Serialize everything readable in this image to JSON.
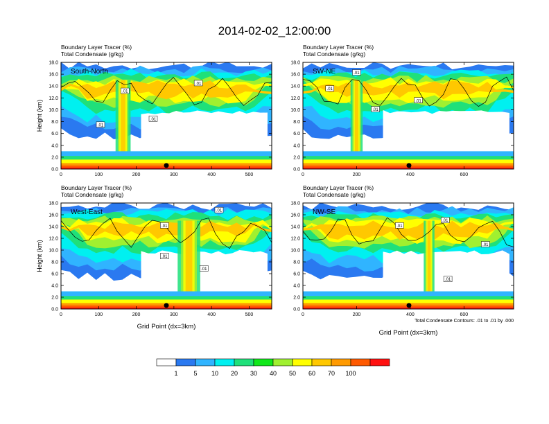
{
  "title": "2014-02-02_12:00:00",
  "chart_data": [
    {
      "type": "heatmap",
      "subtitle1": "Boundary Layer Tracer    (%)",
      "subtitle2": "Total Condensate    (g/kg)",
      "panel_label": "South-North",
      "ylabel": "Height (km)",
      "xlabel": "",
      "ylim": [
        0,
        18
      ],
      "yticks": [
        "0.0",
        "2.0",
        "4.0",
        "6.0",
        "8.0",
        "10.0",
        "12.0",
        "14.0",
        "16.0",
        "18.0"
      ],
      "xlim": [
        0,
        560
      ],
      "xticks": [
        0,
        100,
        200,
        300,
        400,
        500
      ],
      "marker_x": 280,
      "contour_labels": [
        {
          "x": 170,
          "y": 13.2,
          "text": ".01"
        },
        {
          "x": 365,
          "y": 14.5,
          "text": ".01"
        },
        {
          "x": 245,
          "y": 8.5,
          "text": ".01"
        },
        {
          "x": 105,
          "y": 7.5,
          "text": ".01"
        }
      ]
    },
    {
      "type": "heatmap",
      "subtitle1": "Boundary Layer Tracer    (%)",
      "subtitle2": "Total Condensate    (g/kg)",
      "panel_label": "SW-NE",
      "ylabel": "",
      "xlabel": "",
      "ylim": [
        0,
        18
      ],
      "yticks": [
        "0.0",
        "2.0",
        "4.0",
        "6.0",
        "8.0",
        "10.0",
        "12.0",
        "14.0",
        "16.0",
        "18.0"
      ],
      "xlim": [
        0,
        785
      ],
      "xticks": [
        0,
        200,
        400,
        600
      ],
      "marker_x": 395,
      "contour_labels": [
        {
          "x": 200,
          "y": 16.3,
          "text": ".01"
        },
        {
          "x": 100,
          "y": 13.6,
          "text": ".01"
        },
        {
          "x": 270,
          "y": 10.1,
          "text": ".01"
        },
        {
          "x": 430,
          "y": 11.6,
          "text": ".01"
        }
      ]
    },
    {
      "type": "heatmap",
      "subtitle1": "Boundary Layer Tracer    (%)",
      "subtitle2": "Total Condensate    (g/kg)",
      "panel_label": "West-East",
      "ylabel": "Height (km)",
      "xlabel": "Grid Point (dx=3km)",
      "ylim": [
        0,
        18
      ],
      "yticks": [
        "0.0",
        "2.0",
        "4.0",
        "6.0",
        "8.0",
        "10.0",
        "12.0",
        "14.0",
        "16.0",
        "18.0"
      ],
      "xlim": [
        0,
        560
      ],
      "xticks": [
        0,
        100,
        200,
        300,
        400,
        500
      ],
      "marker_x": 280,
      "contour_labels": [
        {
          "x": 275,
          "y": 14.2,
          "text": ".01"
        },
        {
          "x": 420,
          "y": 16.8,
          "text": ".01"
        },
        {
          "x": 275,
          "y": 9.0,
          "text": ".01"
        },
        {
          "x": 380,
          "y": 6.9,
          "text": ".01"
        }
      ]
    },
    {
      "type": "heatmap",
      "subtitle1": "Boundary Layer Tracer    (%)",
      "subtitle2": "Total Condensate    (g/kg)",
      "panel_label": "NW-SE",
      "ylabel": "",
      "xlabel": "Grid Point (dx=3km)",
      "footnote": "Total Condensate Contours: .01 to .01 by .000",
      "ylim": [
        0,
        18
      ],
      "yticks": [
        "0.0",
        "2.0",
        "4.0",
        "6.0",
        "8.0",
        "10.0",
        "12.0",
        "14.0",
        "16.0",
        "18.0"
      ],
      "xlim": [
        0,
        785
      ],
      "xticks": [
        0,
        200,
        400,
        600
      ],
      "marker_x": 395,
      "contour_labels": [
        {
          "x": 360,
          "y": 14.2,
          "text": ".01"
        },
        {
          "x": 530,
          "y": 15.1,
          "text": ".01"
        },
        {
          "x": 540,
          "y": 5.1,
          "text": ".01"
        },
        {
          "x": 680,
          "y": 11.0,
          "text": ".01"
        }
      ]
    }
  ],
  "colorbar": {
    "labels": [
      "1",
      "5",
      "10",
      "20",
      "30",
      "40",
      "50",
      "60",
      "70",
      "100"
    ],
    "colors": [
      "#ffffff",
      "#2a79f0",
      "#30b4ff",
      "#00f0f0",
      "#1fe07a",
      "#10e81a",
      "#a0f030",
      "#ffff00",
      "#ffc800",
      "#ff9a00",
      "#ff5a00",
      "#ff1010"
    ]
  }
}
